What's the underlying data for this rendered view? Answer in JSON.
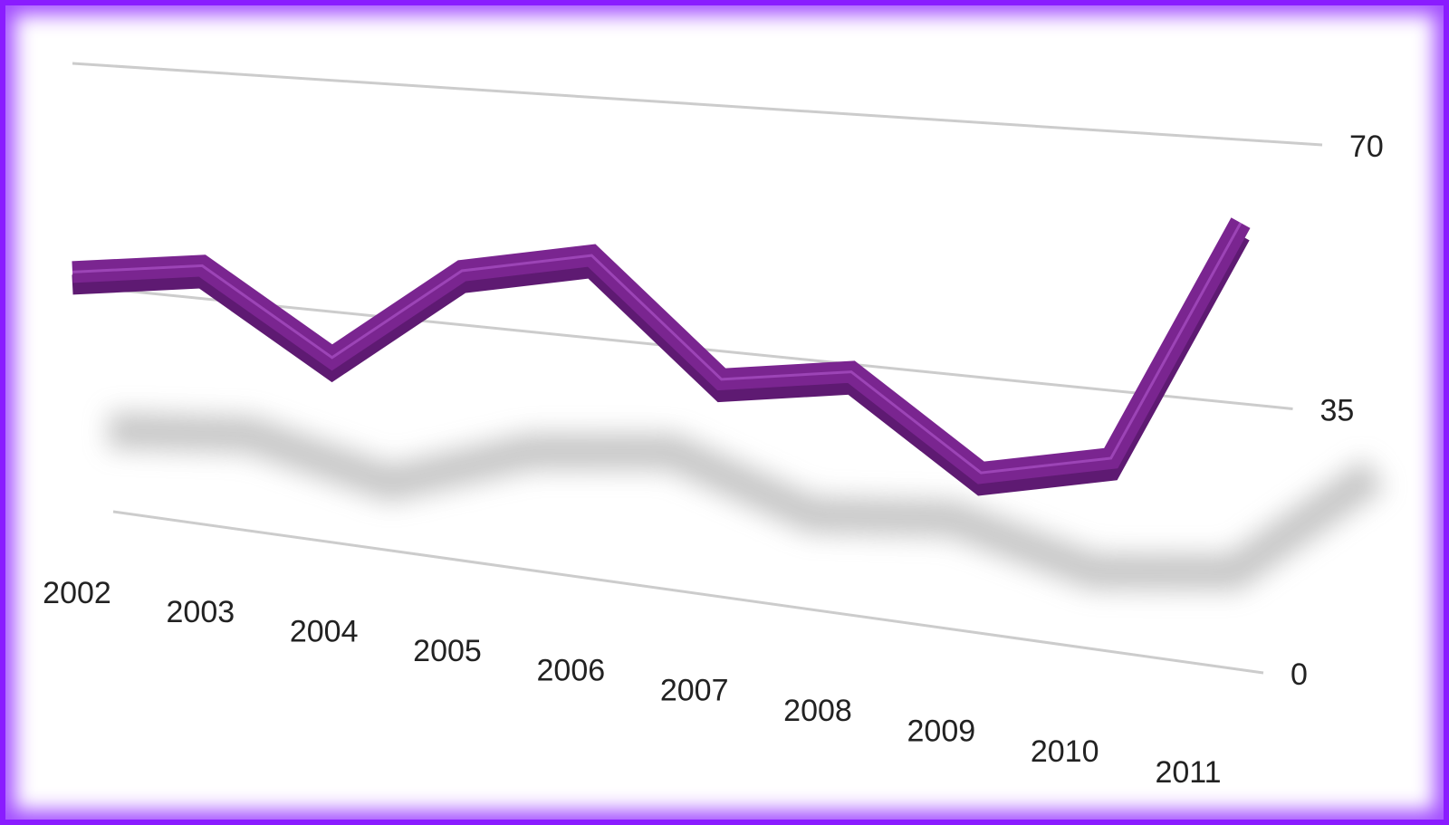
{
  "chart_data": {
    "type": "line",
    "categories": [
      "2002",
      "2003",
      "2004",
      "2005",
      "2006",
      "2007",
      "2008",
      "2009",
      "2010",
      "2011"
    ],
    "values": [
      37,
      40,
      28,
      43,
      47,
      31,
      34,
      22,
      26,
      59
    ],
    "color": "#7a2590",
    "ylim": [
      0,
      70
    ],
    "yticks": [
      0,
      35,
      70
    ],
    "grid": true
  }
}
